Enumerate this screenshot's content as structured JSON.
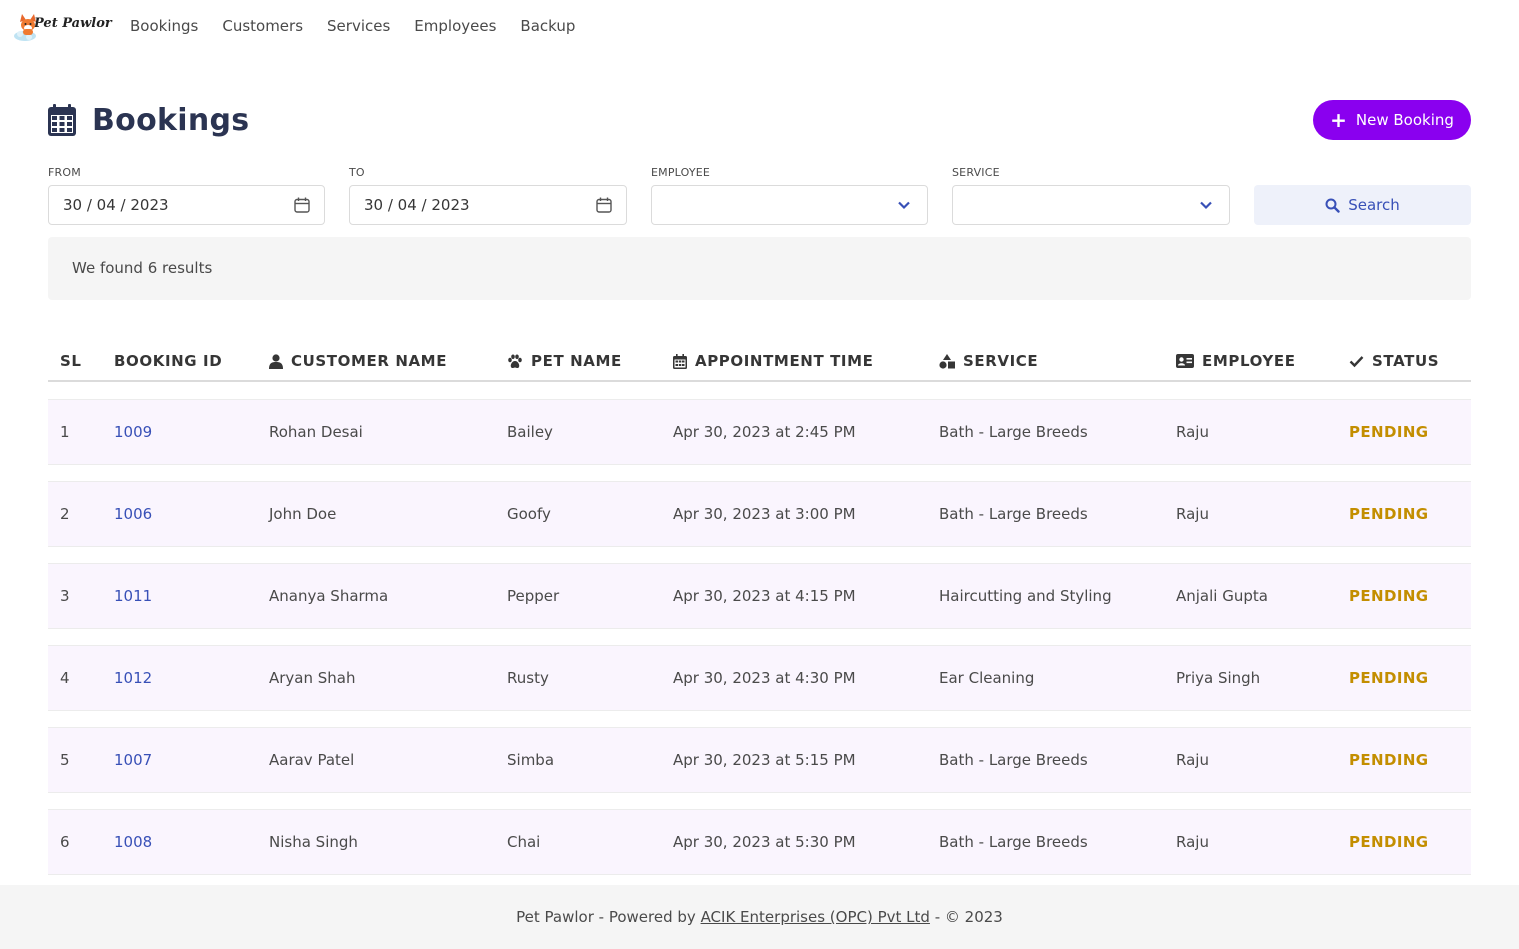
{
  "brand": {
    "name": "Pet Pawlor"
  },
  "nav": {
    "items": [
      "Bookings",
      "Customers",
      "Services",
      "Employees",
      "Backup"
    ]
  },
  "header": {
    "title": "Bookings",
    "new_button_label": "New Booking"
  },
  "filters": {
    "from_label": "FROM",
    "from_value": "30 / 04 / 2023",
    "to_label": "TO",
    "to_value": "30 / 04 / 2023",
    "employee_label": "EMPLOYEE",
    "employee_value": "",
    "service_label": "SERVICE",
    "service_value": "",
    "search_label": "Search"
  },
  "notice": {
    "text": "We found 6 results"
  },
  "table": {
    "columns": [
      "SL",
      "BOOKING ID",
      "CUSTOMER NAME",
      "PET NAME",
      "APPOINTMENT TIME",
      "SERVICE",
      "EMPLOYEE",
      "STATUS"
    ],
    "column_icons": [
      "",
      "",
      "user-icon",
      "paw-icon",
      "calendar-icon",
      "shapes-icon",
      "id-card-icon",
      "check-icon"
    ],
    "rows": [
      {
        "sl": "1",
        "id": "1009",
        "customer": "Rohan Desai",
        "pet": "Bailey",
        "time": "Apr 30, 2023 at 2:45 PM",
        "service": "Bath - Large Breeds",
        "employee": "Raju",
        "status": "PENDING"
      },
      {
        "sl": "2",
        "id": "1006",
        "customer": "John Doe",
        "pet": "Goofy",
        "time": "Apr 30, 2023 at 3:00 PM",
        "service": "Bath - Large Breeds",
        "employee": "Raju",
        "status": "PENDING"
      },
      {
        "sl": "3",
        "id": "1011",
        "customer": "Ananya Sharma",
        "pet": "Pepper",
        "time": "Apr 30, 2023 at 4:15 PM",
        "service": "Haircutting and Styling",
        "employee": "Anjali Gupta",
        "status": "PENDING"
      },
      {
        "sl": "4",
        "id": "1012",
        "customer": "Aryan Shah",
        "pet": "Rusty",
        "time": "Apr 30, 2023 at 4:30 PM",
        "service": "Ear Cleaning",
        "employee": "Priya Singh",
        "status": "PENDING"
      },
      {
        "sl": "5",
        "id": "1007",
        "customer": "Aarav Patel",
        "pet": "Simba",
        "time": "Apr 30, 2023 at 5:15 PM",
        "service": "Bath - Large Breeds",
        "employee": "Raju",
        "status": "PENDING"
      },
      {
        "sl": "6",
        "id": "1008",
        "customer": "Nisha Singh",
        "pet": "Chai",
        "time": "Apr 30, 2023 at 5:30 PM",
        "service": "Bath - Large Breeds",
        "employee": "Raju",
        "status": "PENDING"
      }
    ]
  },
  "footer": {
    "prefix": "Pet Pawlor - Powered by ",
    "link_text": "ACIK Enterprises (OPC) Pvt Ltd",
    "suffix": " - © 2023"
  },
  "colors": {
    "primary_button": "#8a00ef",
    "link": "#3850b7",
    "status_pending": "#c38e00",
    "title": "#2b3452",
    "row_background": "#faf5fe"
  }
}
